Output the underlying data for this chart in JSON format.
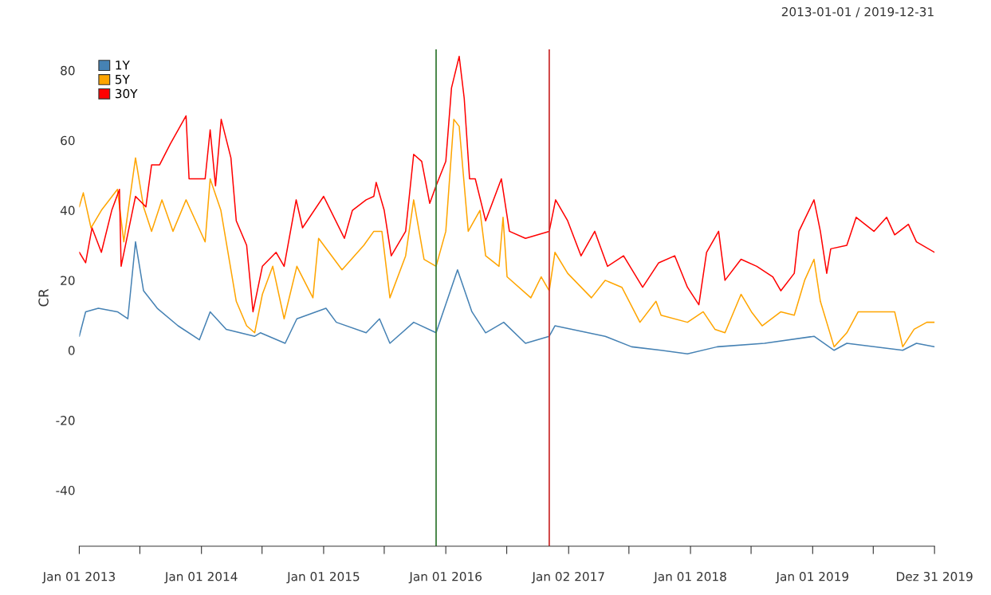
{
  "chart_data": {
    "type": "line",
    "title": "2013-01-01 / 2019-12-31",
    "ylabel": "CR",
    "xlim": [
      "2013-01-01",
      "2019-12-31"
    ],
    "ylim": [
      -56,
      86
    ],
    "xticks": [
      {
        "value": "2013-01-01",
        "label": "Jan 01 2013"
      },
      {
        "value": "2013-07-01",
        "label": null
      },
      {
        "value": "2014-01-01",
        "label": "Jan 01 2014"
      },
      {
        "value": "2014-07-01",
        "label": null
      },
      {
        "value": "2015-01-01",
        "label": "Jan 01 2015"
      },
      {
        "value": "2015-07-01",
        "label": null
      },
      {
        "value": "2016-01-01",
        "label": "Jan 01 2016"
      },
      {
        "value": "2016-07-01",
        "label": null
      },
      {
        "value": "2017-01-02",
        "label": "Jan 02 2017"
      },
      {
        "value": "2017-07-01",
        "label": null
      },
      {
        "value": "2018-01-01",
        "label": "Jan 01 2018"
      },
      {
        "value": "2018-07-01",
        "label": null
      },
      {
        "value": "2019-01-01",
        "label": "Jan 01 2019"
      },
      {
        "value": "2019-07-01",
        "label": null
      },
      {
        "value": "2019-12-31",
        "label": "Dez 31 2019"
      }
    ],
    "yticks": [
      -40,
      -20,
      0,
      20,
      40,
      60,
      80
    ],
    "grid": false,
    "legend": "top left",
    "marker": "none",
    "line_style": "solid",
    "ref_lines": [
      {
        "axis": "x",
        "value": "2015-12-03",
        "label": null,
        "color": "#3a7d3a"
      },
      {
        "axis": "x",
        "value": "2016-11-05",
        "label": null,
        "color": "#cc3333"
      }
    ],
    "series": [
      {
        "name": "1Y",
        "color": "#4682b4",
        "x": [
          "2013-01-01",
          "2013-01-20",
          "2013-02-27",
          "2013-04-25",
          "2013-05-26",
          "2013-06-18",
          "2013-07-12",
          "2013-08-22",
          "2013-10-23",
          "2013-12-26",
          "2014-01-27",
          "2014-03-16",
          "2014-06-09",
          "2014-06-26",
          "2014-09-08",
          "2014-10-13",
          "2015-01-08",
          "2015-02-08",
          "2015-05-08",
          "2015-06-17",
          "2015-07-18",
          "2015-09-27",
          "2015-12-03",
          "2016-02-05",
          "2016-03-19",
          "2016-04-29",
          "2016-06-22",
          "2016-08-26",
          "2016-11-05",
          "2016-11-22",
          "2017-04-21",
          "2017-07-09",
          "2017-10-05",
          "2017-12-23",
          "2018-03-22",
          "2018-08-10",
          "2019-01-05",
          "2019-03-06",
          "2019-04-13",
          "2019-09-27",
          "2019-11-07",
          "2019-12-31"
        ],
        "values": [
          4,
          11,
          12,
          11,
          9,
          31,
          17,
          12,
          7,
          3,
          11,
          6,
          4,
          5,
          2,
          9,
          12,
          8,
          5,
          9,
          2,
          8,
          5,
          23,
          11,
          5,
          8,
          2,
          4,
          7,
          4,
          1,
          0,
          -1,
          1,
          2,
          4,
          0,
          2,
          0,
          2,
          1
        ]
      },
      {
        "name": "5Y",
        "color": "#ffa500",
        "x": [
          "2013-01-01",
          "2013-01-13",
          "2013-02-05",
          "2013-03-08",
          "2013-04-25",
          "2013-05-14",
          "2013-06-18",
          "2013-07-12",
          "2013-08-05",
          "2013-09-05",
          "2013-10-08",
          "2013-11-16",
          "2014-01-12",
          "2014-01-27",
          "2014-02-28",
          "2014-04-15",
          "2014-05-16",
          "2014-06-09",
          "2014-07-02",
          "2014-08-02",
          "2014-09-05",
          "2014-10-13",
          "2014-11-30",
          "2014-12-17",
          "2015-02-25",
          "2015-05-01",
          "2015-05-31",
          "2015-06-24",
          "2015-07-18",
          "2015-09-03",
          "2015-09-27",
          "2015-10-28",
          "2015-12-03",
          "2016-01-01",
          "2016-01-25",
          "2016-02-10",
          "2016-03-08",
          "2016-04-12",
          "2016-04-29",
          "2016-06-08",
          "2016-06-20",
          "2016-07-02",
          "2016-09-11",
          "2016-10-12",
          "2016-11-05",
          "2016-11-22",
          "2016-12-30",
          "2017-03-11",
          "2017-04-21",
          "2017-06-10",
          "2017-08-03",
          "2017-09-20",
          "2017-10-05",
          "2017-12-23",
          "2018-02-08",
          "2018-03-15",
          "2018-04-14",
          "2018-06-01",
          "2018-07-02",
          "2018-08-03",
          "2018-09-28",
          "2018-11-07",
          "2018-12-08",
          "2019-01-05",
          "2019-01-24",
          "2019-03-06",
          "2019-04-13",
          "2019-05-17",
          "2019-07-03",
          "2019-09-03",
          "2019-09-27",
          "2019-10-31",
          "2019-12-08",
          "2019-12-31"
        ],
        "values": [
          41,
          45,
          35,
          40,
          46,
          31,
          55,
          41,
          34,
          43,
          34,
          43,
          31,
          49,
          40,
          14,
          7,
          5,
          16,
          24,
          9,
          24,
          15,
          32,
          23,
          30,
          34,
          34,
          15,
          27,
          43,
          26,
          24,
          34,
          66,
          64,
          34,
          40,
          27,
          24,
          38,
          21,
          15,
          21,
          17,
          28,
          22,
          15,
          20,
          18,
          8,
          14,
          10,
          8,
          11,
          6,
          5,
          16,
          11,
          7,
          11,
          10,
          20,
          26,
          14,
          1,
          5,
          11,
          11,
          11,
          1,
          6,
          8,
          8
        ]
      },
      {
        "name": "30Y",
        "color": "#ff0000",
        "x": [
          "2013-01-01",
          "2013-01-20",
          "2013-02-08",
          "2013-03-08",
          "2013-04-08",
          "2013-05-01",
          "2013-05-06",
          "2013-06-18",
          "2013-07-19",
          "2013-08-05",
          "2013-08-29",
          "2013-09-30",
          "2013-11-16",
          "2013-11-25",
          "2014-01-12",
          "2014-01-27",
          "2014-02-12",
          "2014-03-01",
          "2014-03-30",
          "2014-04-15",
          "2014-05-16",
          "2014-06-04",
          "2014-07-02",
          "2014-08-12",
          "2014-09-05",
          "2014-10-11",
          "2014-10-30",
          "2015-01-01",
          "2015-03-04",
          "2015-03-28",
          "2015-05-08",
          "2015-05-31",
          "2015-06-07",
          "2015-07-01",
          "2015-07-22",
          "2015-09-03",
          "2015-09-27",
          "2015-10-21",
          "2015-11-14",
          "2015-12-03",
          "2016-01-01",
          "2016-01-18",
          "2016-02-10",
          "2016-02-25",
          "2016-03-12",
          "2016-03-29",
          "2016-04-29",
          "2016-06-15",
          "2016-07-09",
          "2016-08-26",
          "2016-11-05",
          "2016-11-24",
          "2016-12-30",
          "2017-02-08",
          "2017-03-21",
          "2017-04-28",
          "2017-06-15",
          "2017-08-11",
          "2017-09-28",
          "2017-11-15",
          "2017-12-23",
          "2018-01-26",
          "2018-02-18",
          "2018-03-26",
          "2018-04-14",
          "2018-06-01",
          "2018-07-18",
          "2018-09-04",
          "2018-09-28",
          "2018-11-07",
          "2018-11-21",
          "2019-01-05",
          "2019-01-24",
          "2019-02-12",
          "2019-02-24",
          "2019-04-13",
          "2019-05-11",
          "2019-07-03",
          "2019-08-10",
          "2019-09-03",
          "2019-10-14",
          "2019-11-07",
          "2019-12-31"
        ],
        "values": [
          28,
          25,
          35,
          28,
          40,
          46,
          24,
          44,
          41,
          53,
          53,
          59,
          67,
          49,
          49,
          63,
          47,
          66,
          55,
          37,
          30,
          11,
          24,
          28,
          24,
          43,
          35,
          44,
          32,
          40,
          43,
          44,
          48,
          40,
          27,
          34,
          56,
          54,
          42,
          47,
          54,
          75,
          84,
          72,
          49,
          49,
          37,
          49,
          34,
          32,
          34,
          43,
          37,
          27,
          34,
          24,
          27,
          18,
          25,
          27,
          18,
          13,
          28,
          34,
          20,
          26,
          24,
          21,
          17,
          22,
          34,
          43,
          34,
          22,
          29,
          30,
          38,
          34,
          38,
          33,
          36,
          31,
          28
        ]
      }
    ]
  }
}
